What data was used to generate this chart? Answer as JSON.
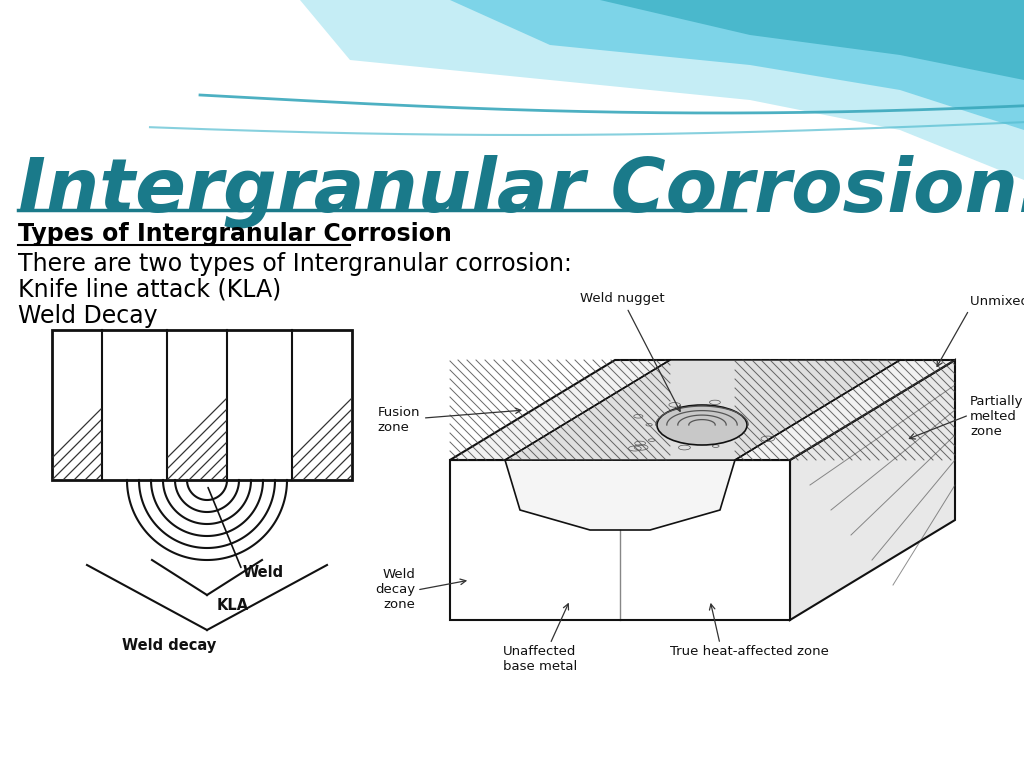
{
  "title": "Intergranular Corrosion:",
  "subtitle": "Types of Intergranular Corrosion",
  "body_lines": [
    "There are two types of Intergranular corrosion:",
    "Knife line attack (KLA)",
    "Weld Decay"
  ],
  "title_color": "#1a7a8a",
  "title_fontsize": 54,
  "subtitle_fontsize": 17,
  "body_fontsize": 17,
  "bg_color": "#ffffff",
  "diagram_color": "#111111",
  "label_fontsize": 9.5
}
